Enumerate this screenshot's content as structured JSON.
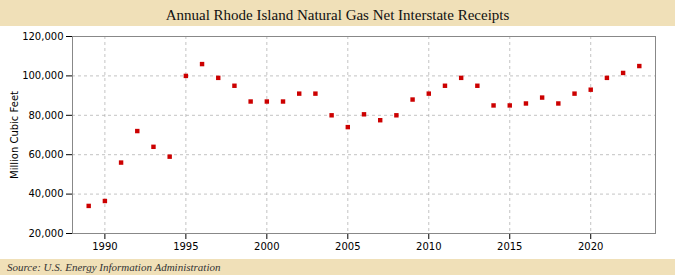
{
  "chart_data": {
    "type": "scatter",
    "title": "Annual Rhode Island Natural Gas Net Interstate Receipts",
    "ylabel": "Million Cubic Feet",
    "source": "Source: U.S. Energy Information Administration",
    "x": [
      1989,
      1990,
      1991,
      1992,
      1993,
      1994,
      1995,
      1996,
      1997,
      1998,
      1999,
      2000,
      2001,
      2002,
      2003,
      2004,
      2005,
      2006,
      2007,
      2008,
      2009,
      2010,
      2011,
      2012,
      2013,
      2014,
      2015,
      2016,
      2017,
      2018,
      2019,
      2020,
      2021,
      2022,
      2023
    ],
    "values": [
      34000,
      36500,
      56000,
      72000,
      64000,
      59000,
      100000,
      106000,
      99000,
      95000,
      87000,
      87000,
      87000,
      91000,
      91000,
      80000,
      74000,
      80500,
      77500,
      80000,
      88000,
      91000,
      95000,
      99000,
      95000,
      85000,
      85000,
      86000,
      89000,
      86000,
      91000,
      93000,
      99000,
      101500,
      105000
    ],
    "color": "#cc0000",
    "marker": "square",
    "xlim": [
      1988,
      2024
    ],
    "xticks": [
      1990,
      1995,
      2000,
      2005,
      2010,
      2015,
      2020
    ],
    "ylim": [
      20000,
      120000
    ],
    "yticks": [
      {
        "value": 20000,
        "label": "20,000"
      },
      {
        "value": 40000,
        "label": "40,000"
      },
      {
        "value": 60000,
        "label": "60,000"
      },
      {
        "value": 80000,
        "label": "80,000"
      },
      {
        "value": 100000,
        "label": "100,000"
      },
      {
        "value": 120000,
        "label": "120,000"
      }
    ],
    "grid": true
  }
}
